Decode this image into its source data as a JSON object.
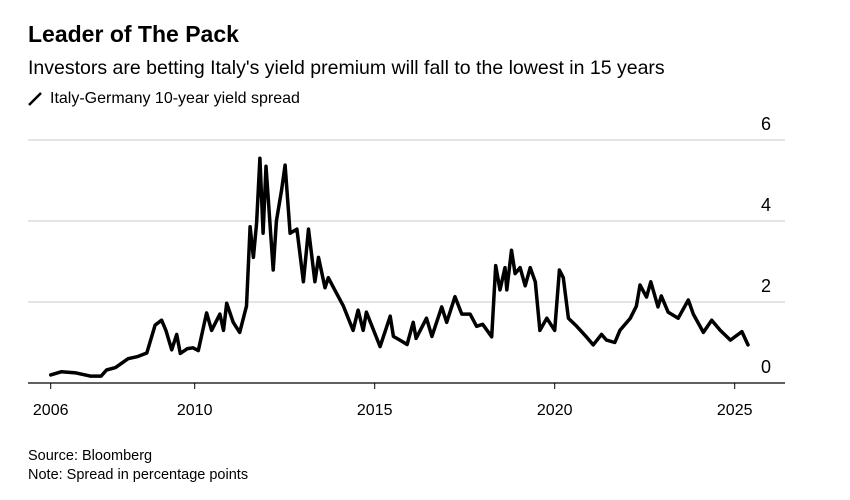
{
  "header": {
    "title": "Leader of The Pack",
    "subtitle": "Investors are betting Italy's yield premium will fall to the lowest in 15 years",
    "legend_label": "Italy-Germany 10-year yield spread"
  },
  "footer": {
    "source": "Source: Bloomberg",
    "note": "Note: Spread in percentage points"
  },
  "chart_data": {
    "type": "line",
    "title": "Leader of The Pack",
    "xlabel": "",
    "ylabel": "Spread (percentage points)",
    "xlim": [
      2006,
      2026
    ],
    "ylim": [
      0,
      6
    ],
    "grid": true,
    "x_ticks": [
      2006,
      2010,
      2015,
      2020,
      2025
    ],
    "x_tick_labels": [
      "2006",
      "2010",
      "2015",
      "2020",
      "2025"
    ],
    "y_ticks": [
      0,
      2,
      4,
      6
    ],
    "y_tick_labels": [
      "0",
      "2",
      "4",
      "6"
    ],
    "line_color": "#000000",
    "series": [
      {
        "name": "Italy-Germany 10-year yield spread",
        "x": [
          2006.0,
          2006.3,
          2006.7,
          2007.1,
          2007.4,
          2007.55,
          2007.8,
          2008.1,
          2008.15,
          2008.4,
          2008.67,
          2008.9,
          2009.08,
          2009.2,
          2009.36,
          2009.5,
          2009.6,
          2009.8,
          2009.95,
          2010.1,
          2010.33,
          2010.47,
          2010.7,
          2010.8,
          2010.89,
          2011.07,
          2011.25,
          2011.44,
          2011.54,
          2011.63,
          2011.72,
          2011.81,
          2011.9,
          2011.98,
          2012.18,
          2012.27,
          2012.41,
          2012.51,
          2012.65,
          2012.84,
          2013.02,
          2013.16,
          2013.34,
          2013.44,
          2013.62,
          2013.71,
          2013.95,
          2014.13,
          2014.4,
          2014.54,
          2014.68,
          2014.77,
          2015.15,
          2015.43,
          2015.52,
          2015.7,
          2015.9,
          2016.07,
          2016.15,
          2016.44,
          2016.59,
          2016.86,
          2017.0,
          2017.23,
          2017.42,
          2017.65,
          2017.83,
          2018.0,
          2018.25,
          2018.36,
          2018.48,
          2018.62,
          2018.67,
          2018.8,
          2018.9,
          2019.04,
          2019.18,
          2019.32,
          2019.46,
          2019.59,
          2019.78,
          2020.0,
          2020.13,
          2020.24,
          2020.38,
          2020.61,
          2020.89,
          2021.07,
          2021.3,
          2021.44,
          2021.67,
          2021.81,
          2022.1,
          2022.27,
          2022.37,
          2022.55,
          2022.67,
          2022.87,
          2022.96,
          2023.15,
          2023.43,
          2023.71,
          2023.85,
          2024.13,
          2024.36,
          2024.6,
          2024.88,
          2025.2,
          2025.37
        ],
        "values": [
          0.2,
          0.28,
          0.25,
          0.17,
          0.17,
          0.32,
          0.38,
          0.57,
          0.6,
          0.65,
          0.74,
          1.43,
          1.55,
          1.3,
          0.82,
          1.2,
          0.73,
          0.85,
          0.87,
          0.8,
          1.73,
          1.3,
          1.7,
          1.3,
          1.97,
          1.5,
          1.25,
          1.9,
          3.86,
          3.1,
          3.95,
          5.55,
          3.7,
          5.35,
          2.79,
          4.0,
          4.75,
          5.38,
          3.7,
          3.8,
          2.5,
          3.8,
          2.5,
          3.1,
          2.35,
          2.6,
          2.2,
          1.9,
          1.3,
          1.8,
          1.3,
          1.75,
          0.9,
          1.65,
          1.15,
          1.06,
          0.95,
          1.5,
          1.1,
          1.6,
          1.15,
          1.88,
          1.5,
          2.13,
          1.7,
          1.7,
          1.4,
          1.45,
          1.14,
          2.9,
          2.3,
          2.85,
          2.3,
          3.28,
          2.7,
          2.85,
          2.4,
          2.85,
          2.5,
          1.3,
          1.6,
          1.3,
          2.79,
          2.6,
          1.6,
          1.4,
          1.13,
          0.94,
          1.2,
          1.06,
          1.0,
          1.3,
          1.6,
          1.9,
          2.42,
          2.12,
          2.5,
          1.88,
          2.15,
          1.75,
          1.6,
          2.05,
          1.7,
          1.25,
          1.55,
          1.3,
          1.06,
          1.27,
          0.94
        ]
      }
    ]
  }
}
